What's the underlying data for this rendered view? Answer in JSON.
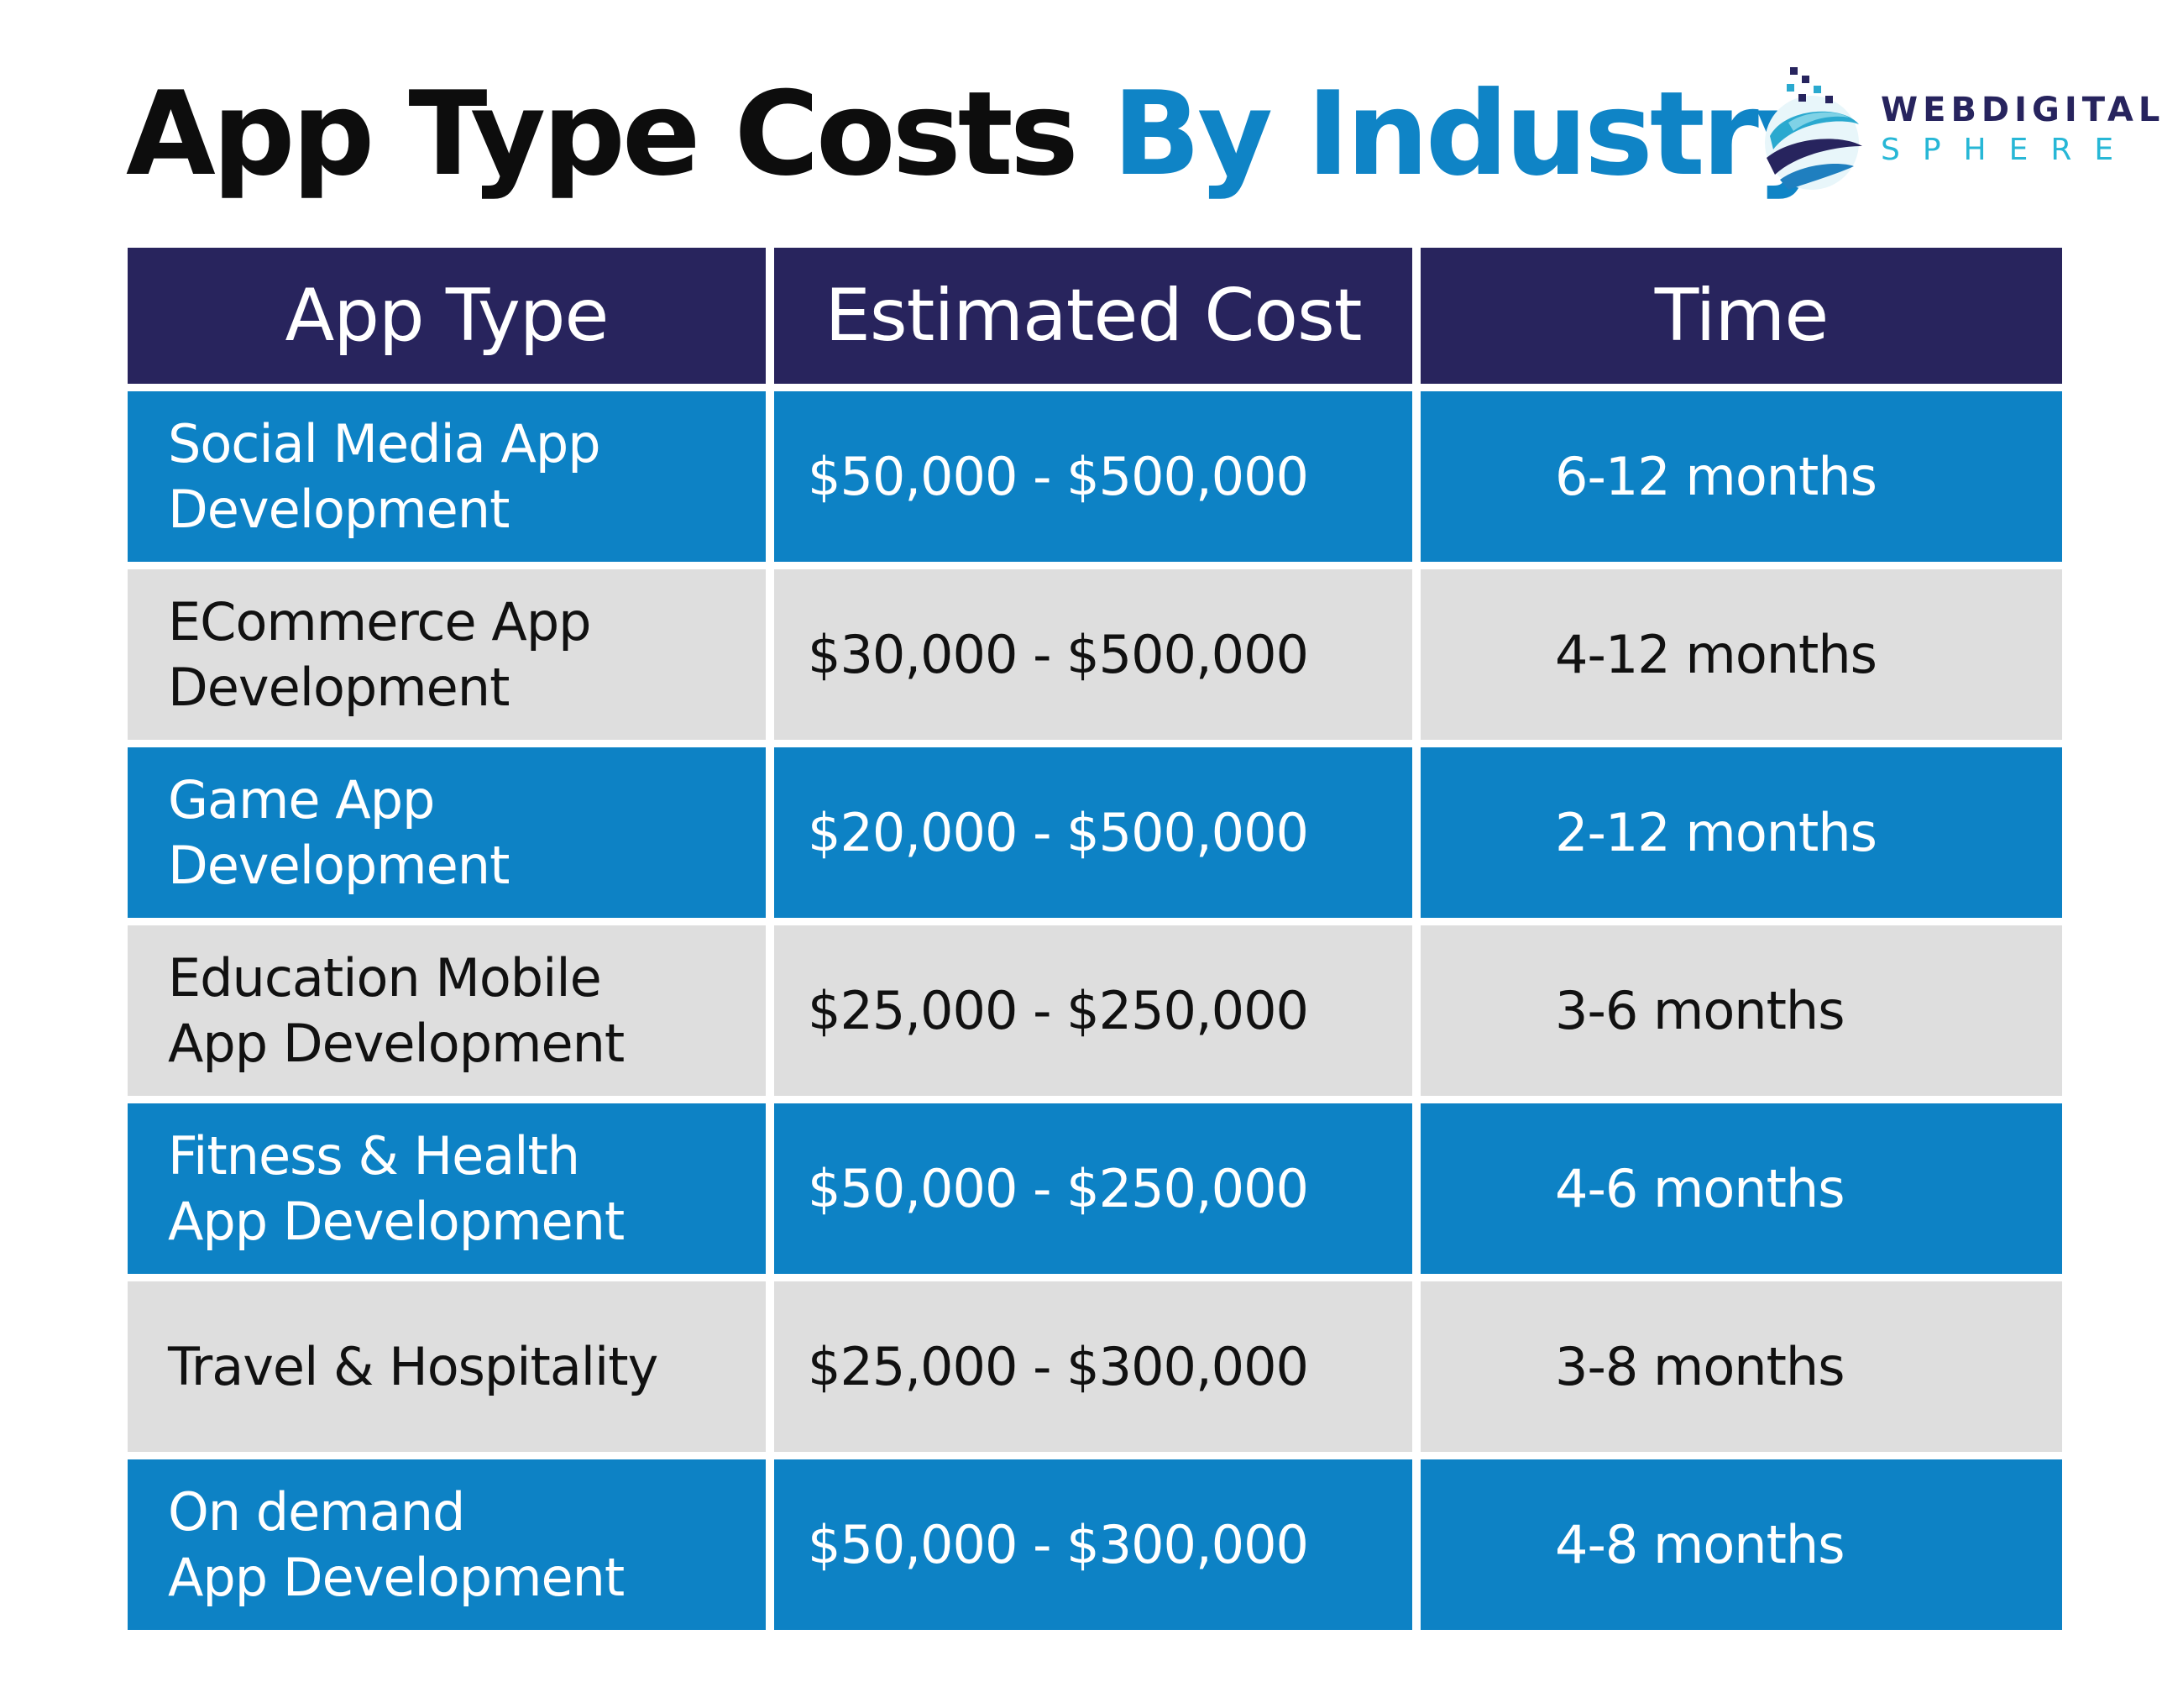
{
  "title": {
    "part1": "App Type Costs",
    "part2": "By Industry",
    "accent_color": "#0f84c6"
  },
  "logo": {
    "line1": "WEBDIGITAL",
    "line2": "SPHERE"
  },
  "table": {
    "headers": [
      "App Type",
      "Estimated Cost",
      "Time"
    ],
    "rows": [
      {
        "app_type_line1": "Social Media App",
        "app_type_line2": "Development",
        "cost": "$50,000 - $500,000",
        "time": "6-12 months"
      },
      {
        "app_type_line1": "ECommerce App",
        "app_type_line2": "Development",
        "cost": "$30,000 - $500,000",
        "time": "4-12 months"
      },
      {
        "app_type_line1": "Game App",
        "app_type_line2": "Development",
        "cost": "$20,000 - $500,000",
        "time": "2-12 months"
      },
      {
        "app_type_line1": "Education Mobile",
        "app_type_line2": "App Development",
        "cost": "$25,000 - $250,000",
        "time": "3-6 months"
      },
      {
        "app_type_line1": "Fitness & Health",
        "app_type_line2": "App Development",
        "cost": "$50,000 - $250,000",
        "time": "4-6 months"
      },
      {
        "app_type_line1": "Travel & Hospitality",
        "app_type_line2": "",
        "cost": "$25,000 - $300,000",
        "time": "3-8 months"
      },
      {
        "app_type_line1": "On demand",
        "app_type_line2": "App Development",
        "cost": "$50,000 - $300,000",
        "time": "4-8 months"
      }
    ]
  },
  "colors": {
    "header_bg": "#28245d",
    "blue_row": "#0d82c5",
    "gray_row": "#dedede"
  },
  "icons": [
    "globe-swirl-icon"
  ]
}
